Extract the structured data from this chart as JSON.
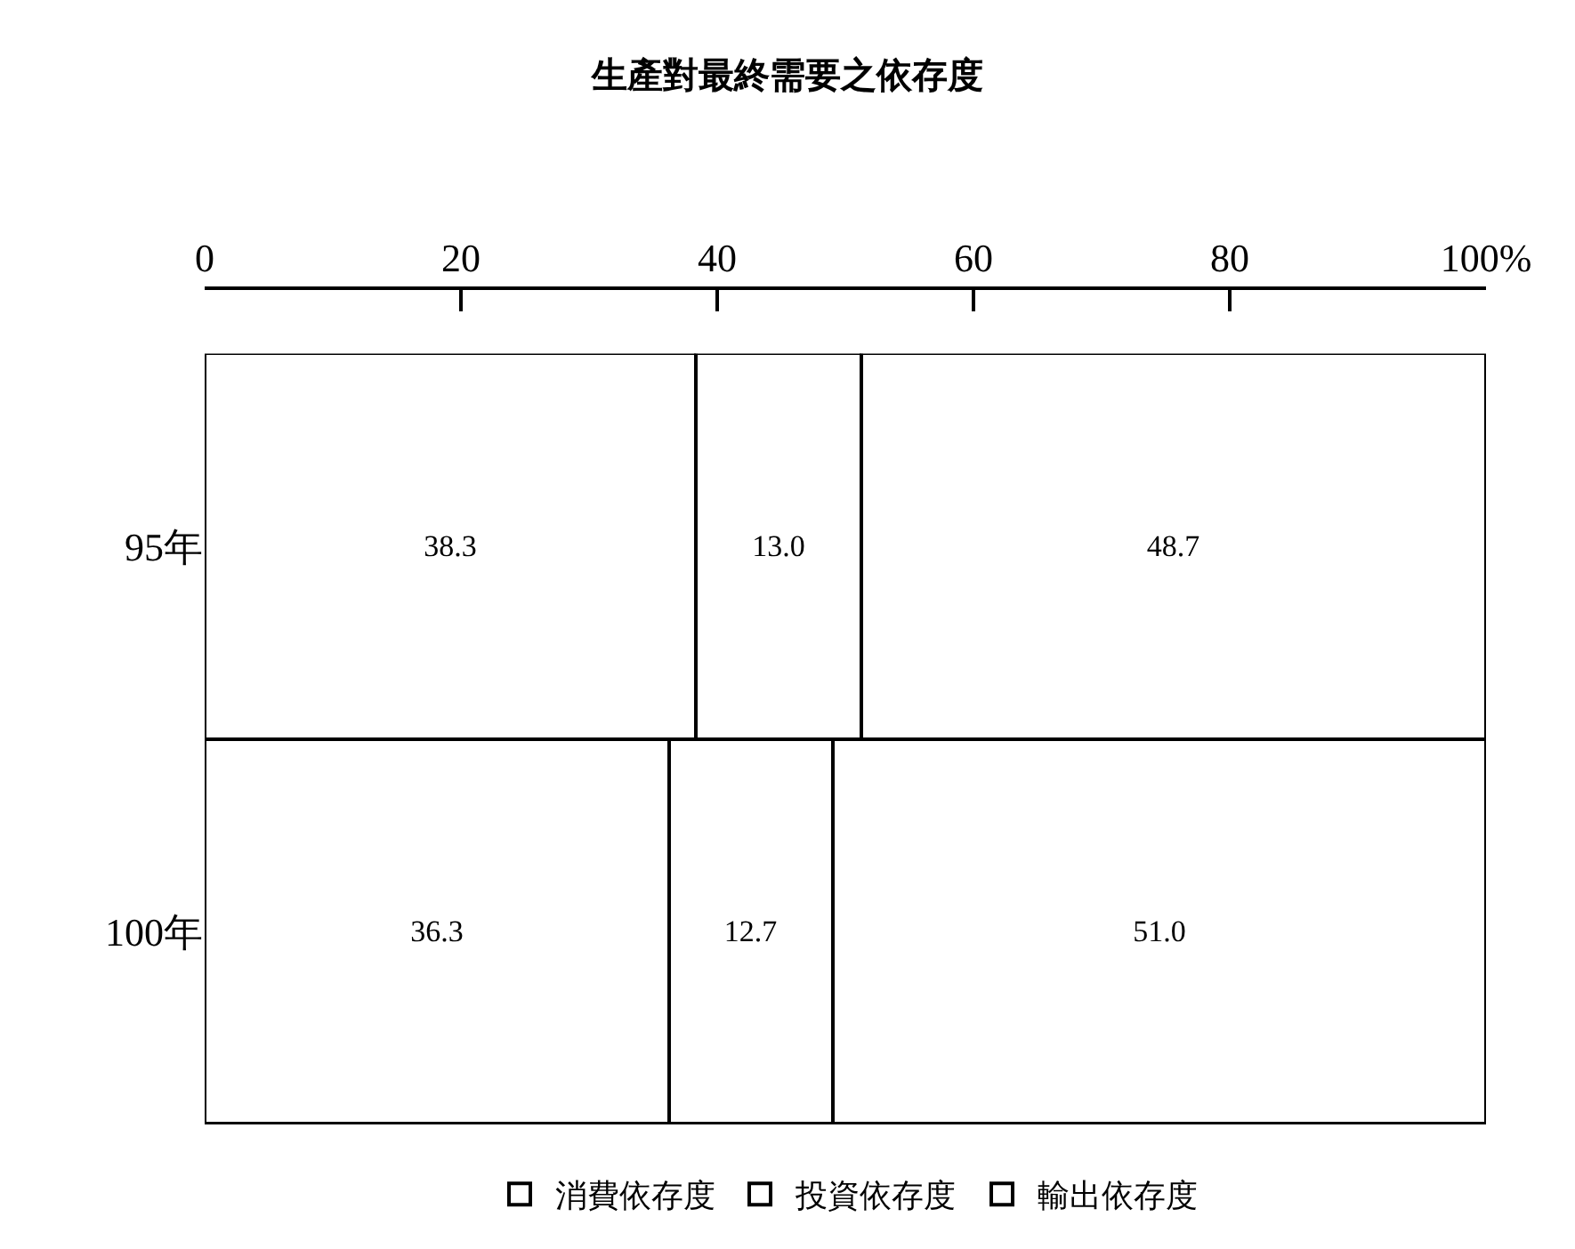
{
  "chart_data": {
    "type": "bar",
    "orientation": "horizontal",
    "stacked": true,
    "title": "生產對最終需要之依存度",
    "categories": [
      "95年",
      "100年"
    ],
    "series": [
      {
        "name": "消費依存度",
        "color": "#ffffff",
        "values": [
          38.3,
          36.3
        ],
        "value_labels": [
          "38.3",
          "36.3"
        ]
      },
      {
        "name": "投資依存度",
        "color": "#ffffff",
        "values": [
          13.0,
          12.7
        ],
        "value_labels": [
          "13.0",
          "12.7"
        ]
      },
      {
        "name": "輸出依存度",
        "color": "#ffffff",
        "values": [
          48.7,
          51.0
        ],
        "value_labels": [
          "48.7",
          "51.0"
        ]
      }
    ],
    "xlim": [
      0,
      100
    ],
    "xticks": [
      0,
      20,
      40,
      60,
      80,
      {
        "value": 100,
        "label": "100%"
      }
    ],
    "legend": "bottom"
  }
}
